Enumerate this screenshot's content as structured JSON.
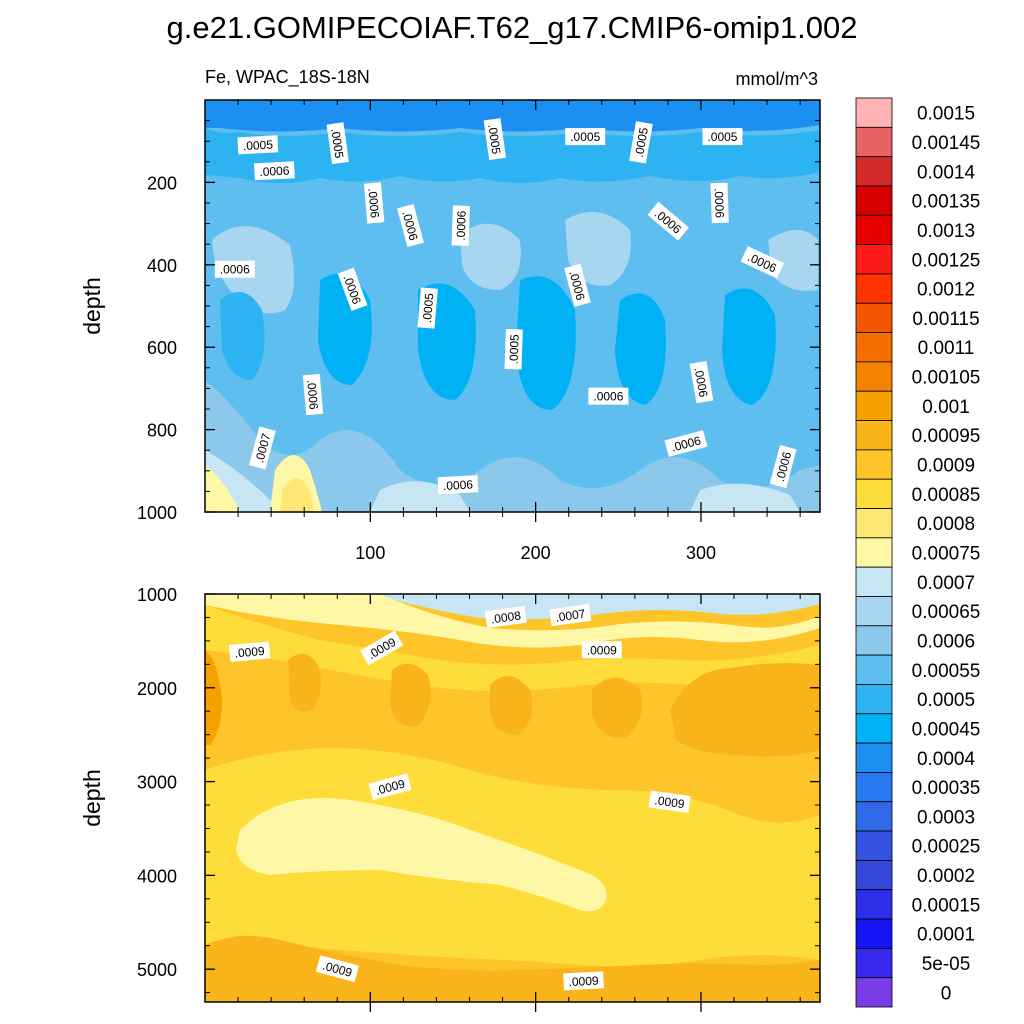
{
  "title": "g.e21.GOMIPECOIAF.T62_g17.CMIP6-omip1.002",
  "chart_data": [
    {
      "type": "heatmap",
      "panel": "upper",
      "variable_label": "Fe, WPAC_18S-18N",
      "units_label": "mmol/m^3",
      "ylabel": "depth",
      "xlabel": "",
      "y_reversed": true,
      "xlim": [
        0,
        372
      ],
      "ylim": [
        0,
        1000
      ],
      "x_ticks": [
        100,
        200,
        300
      ],
      "y_ticks": [
        200,
        400,
        600,
        800,
        1000
      ],
      "contour_labels": [
        {
          "text": ".0005",
          "x": 32,
          "y": 110,
          "angle": -3
        },
        {
          "text": ".0005",
          "x": 80,
          "y": 105,
          "angle": 82
        },
        {
          "text": ".0005",
          "x": 175,
          "y": 95,
          "angle": 82
        },
        {
          "text": ".0005",
          "x": 230,
          "y": 90,
          "angle": 0
        },
        {
          "text": ".0005",
          "x": 264,
          "y": 103,
          "angle": -80
        },
        {
          "text": ".0005",
          "x": 313,
          "y": 90,
          "angle": 0
        },
        {
          "text": ".0006",
          "x": 42,
          "y": 173,
          "angle": -3
        },
        {
          "text": ".0006",
          "x": 102,
          "y": 250,
          "angle": 85
        },
        {
          "text": ".0006",
          "x": 124,
          "y": 305,
          "angle": 75
        },
        {
          "text": ".0006",
          "x": 155,
          "y": 305,
          "angle": -88
        },
        {
          "text": ".0006",
          "x": 280,
          "y": 295,
          "angle": 40
        },
        {
          "text": ".0006",
          "x": 311,
          "y": 250,
          "angle": 88
        },
        {
          "text": ".0006",
          "x": 337,
          "y": 395,
          "angle": 25
        },
        {
          "text": ".0006",
          "x": 18,
          "y": 412,
          "angle": 0
        },
        {
          "text": ".0006",
          "x": 89,
          "y": 460,
          "angle": 70
        },
        {
          "text": ".0005",
          "x": 135,
          "y": 505,
          "angle": -85
        },
        {
          "text": ".0006",
          "x": 225,
          "y": 450,
          "angle": 75
        },
        {
          "text": ".0005",
          "x": 187,
          "y": 605,
          "angle": -88
        },
        {
          "text": ".0006",
          "x": 65,
          "y": 715,
          "angle": 85
        },
        {
          "text": ".0006",
          "x": 244,
          "y": 720,
          "angle": 0
        },
        {
          "text": ".0006",
          "x": 300,
          "y": 685,
          "angle": 80
        },
        {
          "text": ".0007",
          "x": 35,
          "y": 845,
          "angle": -75
        },
        {
          "text": ".0006",
          "x": 291,
          "y": 835,
          "angle": -15
        },
        {
          "text": ".0006",
          "x": 350,
          "y": 890,
          "angle": -75
        },
        {
          "text": ".0006",
          "x": 153,
          "y": 935,
          "angle": -3
        }
      ]
    },
    {
      "type": "heatmap",
      "panel": "lower",
      "ylabel": "depth",
      "xlabel": "",
      "y_reversed": true,
      "xlim": [
        0,
        372
      ],
      "ylim": [
        1000,
        5350
      ],
      "y_ticks": [
        1000,
        2000,
        3000,
        4000,
        5000
      ],
      "contour_labels": [
        {
          "text": ".0009",
          "x": 27,
          "y": 1620,
          "angle": -5
        },
        {
          "text": ".0009",
          "x": 107,
          "y": 1580,
          "angle": -30
        },
        {
          "text": ".0008",
          "x": 182,
          "y": 1250,
          "angle": -8
        },
        {
          "text": ".0007",
          "x": 221,
          "y": 1230,
          "angle": -8
        },
        {
          "text": ".0009",
          "x": 240,
          "y": 1600,
          "angle": 0
        },
        {
          "text": ".0009",
          "x": 112,
          "y": 3060,
          "angle": -15
        },
        {
          "text": ".0009",
          "x": 281,
          "y": 3220,
          "angle": 8
        },
        {
          "text": ".0009",
          "x": 80,
          "y": 5000,
          "angle": 15
        },
        {
          "text": ".0009",
          "x": 229,
          "y": 5130,
          "angle": -3
        }
      ]
    }
  ],
  "colorbar": {
    "labels": [
      "0.0015",
      "0.00145",
      "0.0014",
      "0.00135",
      "0.0013",
      "0.00125",
      "0.0012",
      "0.00115",
      "0.0011",
      "0.00105",
      "0.001",
      "0.00095",
      "0.0009",
      "0.00085",
      "0.0008",
      "0.00075",
      "0.0007",
      "0.00065",
      "0.0006",
      "0.00055",
      "0.0005",
      "0.00045",
      "0.0004",
      "0.00035",
      "0.0003",
      "0.00025",
      "0.0002",
      "0.00015",
      "0.0001",
      "5e-05",
      "0"
    ],
    "colors": [
      "#ffb3b3",
      "#e86464",
      "#d42a2a",
      "#d60000",
      "#e80000",
      "#ff1a1a",
      "#ff3300",
      "#f55500",
      "#f56e00",
      "#f58200",
      "#f7a100",
      "#f9b41a",
      "#fdc52a",
      "#fedc3a",
      "#fee873",
      "#fef8a6",
      "#c6e6f4",
      "#a8d6f0",
      "#8cc7ec",
      "#5fbef0",
      "#2db3f1",
      "#00b2f5",
      "#1c8ff2",
      "#2879ef",
      "#2f69e8",
      "#3352df",
      "#3646d9",
      "#2c2ee8",
      "#1414f5",
      "#3728ee",
      "#7a3ce6"
    ]
  }
}
